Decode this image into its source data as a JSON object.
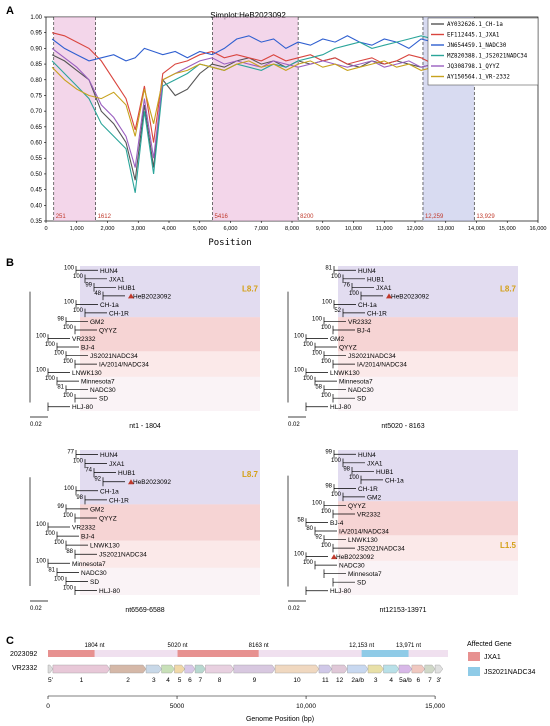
{
  "panels": {
    "a": "A",
    "b": "B",
    "c": "C"
  },
  "chart_data": {
    "type": "line",
    "title": "Simplot:HeB2023092",
    "xlabel": "Position",
    "ylabel": "",
    "xlim": [
      0,
      16000
    ],
    "ylim": [
      0.35,
      1.0
    ],
    "xticks": [
      0,
      1000,
      2000,
      3000,
      4000,
      5000,
      6000,
      7000,
      8000,
      9000,
      10000,
      11000,
      12000,
      13000,
      14000,
      15000,
      16000
    ],
    "xtick_labels": [
      "0",
      "1,000",
      "2,000",
      "3,000",
      "4,000",
      "5,000",
      "6,000",
      "7,000",
      "8,000",
      "9,000",
      "10,000",
      "11,000",
      "12,000",
      "13,000",
      "14,000",
      "15,000",
      "16,000"
    ],
    "yticks": [
      0.35,
      0.4,
      0.45,
      0.5,
      0.55,
      0.6,
      0.65,
      0.7,
      0.75,
      0.8,
      0.85,
      0.9,
      0.95,
      1.0
    ],
    "ytick_labels": [
      "0.35",
      "0.40",
      "0.45",
      "0.50",
      "0.55",
      "0.60",
      "0.65",
      "0.70",
      "0.75",
      "0.80",
      "0.85",
      "0.90",
      "0.95",
      "1.00"
    ],
    "legend_position": "top-right",
    "regions": [
      {
        "start": 251,
        "end": 1612,
        "color": "#e9b4d8",
        "start_label": "251",
        "end_label": "1612"
      },
      {
        "start": 5416,
        "end": 8200,
        "color": "#e9b4d8",
        "start_label": "5416",
        "end_label": "8200"
      },
      {
        "start": 12259,
        "end": 13929,
        "color": "#b8bde6",
        "start_label": "12,259",
        "end_label": "13,929"
      }
    ],
    "x": [
      200,
      600,
      1000,
      1400,
      1800,
      2200,
      2600,
      2900,
      3200,
      3500,
      3800,
      4200,
      4600,
      5000,
      5400,
      5800,
      6200,
      6600,
      7000,
      7400,
      7800,
      8200,
      8600,
      9000,
      9400,
      9800,
      10200,
      10600,
      11000,
      11400,
      11800,
      12200,
      12600,
      13000,
      13400,
      13800,
      14200,
      14600,
      15000,
      15400
    ],
    "series": [
      {
        "name": "AY032626.1_CH-1a",
        "color": "#555555",
        "values": [
          0.88,
          0.86,
          0.83,
          0.8,
          0.7,
          0.66,
          0.6,
          0.48,
          0.72,
          0.52,
          0.8,
          0.75,
          0.77,
          0.82,
          0.85,
          0.84,
          0.86,
          0.87,
          0.85,
          0.86,
          0.84,
          0.86,
          0.85,
          0.86,
          0.87,
          0.85,
          0.84,
          0.86,
          0.85,
          0.86,
          0.85,
          0.84,
          0.85,
          0.86,
          0.85,
          0.84,
          0.85,
          0.86,
          0.87,
          0.86
        ]
      },
      {
        "name": "EF112445.1_JXA1",
        "color": "#d9453e",
        "values": [
          0.95,
          0.94,
          0.92,
          0.9,
          0.86,
          0.8,
          0.74,
          0.64,
          0.78,
          0.6,
          0.82,
          0.85,
          0.86,
          0.88,
          0.89,
          0.87,
          0.88,
          0.87,
          0.86,
          0.88,
          0.86,
          0.87,
          0.88,
          0.86,
          0.87,
          0.85,
          0.86,
          0.87,
          0.85,
          0.86,
          0.88,
          0.87,
          0.85,
          0.84,
          0.86,
          0.85,
          0.84,
          0.87,
          0.89,
          0.88
        ]
      },
      {
        "name": "JN654459.1_NADC30",
        "color": "#2f5fd0",
        "values": [
          0.93,
          0.9,
          0.88,
          0.86,
          0.87,
          0.88,
          0.86,
          0.87,
          0.9,
          0.89,
          0.88,
          0.89,
          0.87,
          0.89,
          0.88,
          0.9,
          0.93,
          0.94,
          0.92,
          0.93,
          0.9,
          0.92,
          0.91,
          0.93,
          0.92,
          0.94,
          0.92,
          0.91,
          0.93,
          0.92,
          0.9,
          0.93,
          0.92,
          0.9,
          0.91,
          0.93,
          0.94,
          0.95,
          0.96,
          0.95
        ]
      },
      {
        "name": "MZ820388.1_JS2021NADC34",
        "color": "#2aa59a",
        "values": [
          0.86,
          0.82,
          0.78,
          0.74,
          0.66,
          0.62,
          0.58,
          0.44,
          0.7,
          0.5,
          0.78,
          0.8,
          0.82,
          0.85,
          0.84,
          0.83,
          0.85,
          0.84,
          0.83,
          0.85,
          0.84,
          0.86,
          0.87,
          0.88,
          0.9,
          0.91,
          0.92,
          0.9,
          0.91,
          0.92,
          0.93,
          0.94,
          0.93,
          0.94,
          0.95,
          0.93,
          0.94,
          0.95,
          0.94,
          0.93
        ]
      },
      {
        "name": "JQ308798.1_QYYZ",
        "color": "#9a5fc0",
        "values": [
          0.9,
          0.87,
          0.84,
          0.8,
          0.72,
          0.68,
          0.62,
          0.52,
          0.74,
          0.55,
          0.8,
          0.82,
          0.84,
          0.86,
          0.87,
          0.85,
          0.86,
          0.85,
          0.84,
          0.86,
          0.85,
          0.84,
          0.85,
          0.86,
          0.85,
          0.84,
          0.85,
          0.86,
          0.84,
          0.85,
          0.86,
          0.84,
          0.85,
          0.86,
          0.84,
          0.85,
          0.86,
          0.85,
          0.87,
          0.86
        ]
      },
      {
        "name": "AY150564.1_VR-2332",
        "color": "#c7a21d",
        "values": [
          0.84,
          0.8,
          0.77,
          0.75,
          0.74,
          0.76,
          0.72,
          0.62,
          0.77,
          0.66,
          0.8,
          0.82,
          0.83,
          0.85,
          0.84,
          0.83,
          0.85,
          0.86,
          0.84,
          0.85,
          0.83,
          0.85,
          0.86,
          0.84,
          0.85,
          0.83,
          0.84,
          0.85,
          0.86,
          0.84,
          0.85,
          0.83,
          0.84,
          0.85,
          0.86,
          0.84,
          0.85,
          0.86,
          0.88,
          0.87
        ]
      }
    ]
  },
  "trees": [
    {
      "caption": "nt1 - 1804",
      "highlight": "L8.7",
      "labels": [
        "HUN4",
        "JXA1",
        "HUB1",
        "HeB2023092",
        "CH-1a",
        "CH-1R",
        "GM2",
        "QYYZ",
        "VR2332",
        "BJ-4",
        "JS2021NADC34",
        "IA/2014/NADC34",
        "LNWK130",
        "Minnesota7",
        "NADC30",
        "SD",
        "HLJ-80"
      ],
      "bootstraps": [
        "100",
        "100",
        "99",
        "48",
        "100",
        "100",
        "98",
        "100",
        "100",
        "100",
        "100",
        "100",
        "100",
        "100",
        "81",
        "100"
      ]
    },
    {
      "caption": "nt5020 - 8163",
      "highlight": "L8.7",
      "labels": [
        "HUN4",
        "HUB1",
        "JXA1",
        "HeB2023092",
        "CH-1a",
        "CH-1R",
        "VR2332",
        "BJ-4",
        "GM2",
        "QYYZ",
        "JS2021NADC34",
        "IA/2014/NADC34",
        "LNWK130",
        "Minnesota7",
        "NADC30",
        "SD",
        "HLJ-80"
      ],
      "bootstraps": [
        "81",
        "100",
        "76",
        "100",
        "100",
        "52",
        "100",
        "100",
        "100",
        "100",
        "100",
        "100",
        "100",
        "100",
        "58",
        "100"
      ]
    },
    {
      "caption": "nt6569-6588",
      "highlight": "L8.7",
      "labels": [
        "HUN4",
        "JXA1",
        "HUB1",
        "HeB2023092",
        "CH-1a",
        "CH-1R",
        "GM2",
        "QYYZ",
        "VR2332",
        "BJ-4",
        "LNWK130",
        "JS2021NADC34",
        "Minnesota7",
        "NADC30",
        "SD",
        "HLJ-80"
      ],
      "bootstraps": [
        "77",
        "100",
        "74",
        "92",
        "100",
        "98",
        "99",
        "100",
        "100",
        "100",
        "100",
        "88",
        "100",
        "81",
        "100",
        "100"
      ]
    },
    {
      "caption": "nt12153-13971",
      "highlight": "L1.5",
      "labels": [
        "HUN4",
        "JXA1",
        "HUB1",
        "CH-1a",
        "CH-1R",
        "GM2",
        "QYYZ",
        "VR2332",
        "BJ-4",
        "IA/2014/NADC34",
        "LNWK130",
        "JS2021NADC34",
        "HeB2023092",
        "NADC30",
        "Minnesota7",
        "SD",
        "HLJ-80"
      ],
      "bootstraps": [
        "99",
        "100",
        "98",
        "100",
        "98",
        "100",
        "100",
        "100",
        "58",
        "80",
        "92",
        "100",
        "100",
        "100"
      ]
    }
  ],
  "scale_label": "0.02",
  "genome": {
    "strain_label": "2023092",
    "ref_label": "VR2332",
    "breakpoints": [
      "1804 nt",
      "5020 nt",
      "8163 nt",
      "12,153 nt",
      "13,971 nt"
    ],
    "genes": [
      "5'",
      "1",
      "2",
      "3",
      "4",
      "5",
      "6",
      "7",
      "8",
      "9",
      "10",
      "11",
      "12",
      "2a/b",
      "3",
      "4",
      "5a/b",
      "6",
      "7",
      "3'"
    ],
    "axis_label": "Genome Position (bp)",
    "axis_ticks": [
      "0",
      "5000",
      "10,000",
      "15,000"
    ],
    "legend_title": "Affected Gene",
    "legend_items": [
      {
        "label": "JXA1",
        "color": "#e79190"
      },
      {
        "label": "JS2021NADC34",
        "color": "#8fcbe7"
      }
    ]
  }
}
